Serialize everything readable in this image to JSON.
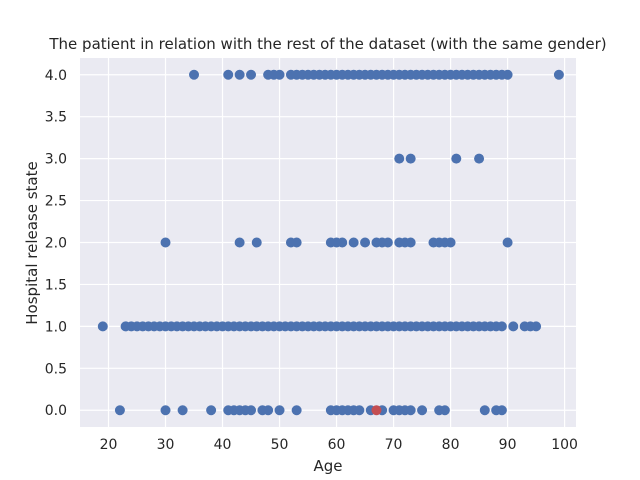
{
  "chart_data": {
    "type": "scatter",
    "title": "The patient in relation with the rest of the dataset (with the same gender)",
    "xlabel": "Age",
    "ylabel": "Hospital release state",
    "xlim": [
      15,
      102
    ],
    "ylim": [
      -0.2,
      4.2
    ],
    "x_ticks": [
      "20",
      "30",
      "40",
      "50",
      "60",
      "70",
      "80",
      "90",
      "100"
    ],
    "y_ticks": [
      "0.0",
      "0.5",
      "1.0",
      "1.5",
      "2.0",
      "2.5",
      "3.0",
      "3.5",
      "4.0"
    ],
    "grid": true,
    "series": [
      {
        "color": "#4c72b0",
        "x": [
          35,
          41,
          43,
          45,
          48,
          49,
          50,
          52,
          53,
          54,
          55,
          56,
          57,
          58,
          59,
          60,
          61,
          62,
          63,
          64,
          65,
          66,
          67,
          68,
          69,
          70,
          71,
          72,
          73,
          74,
          75,
          76,
          77,
          78,
          79,
          80,
          81,
          82,
          83,
          84,
          85,
          86,
          87,
          88,
          89,
          90,
          99,
          71,
          73,
          81,
          85,
          30,
          43,
          46,
          52,
          53,
          59,
          60,
          61,
          63,
          65,
          67,
          68,
          69,
          71,
          72,
          73,
          77,
          78,
          79,
          80,
          90,
          19,
          23,
          24,
          25,
          26,
          27,
          28,
          29,
          30,
          31,
          32,
          33,
          34,
          35,
          36,
          37,
          38,
          39,
          40,
          41,
          42,
          43,
          44,
          45,
          46,
          47,
          48,
          49,
          50,
          51,
          52,
          53,
          54,
          55,
          56,
          57,
          58,
          59,
          60,
          61,
          62,
          63,
          64,
          65,
          66,
          67,
          68,
          69,
          70,
          71,
          72,
          73,
          74,
          75,
          76,
          77,
          78,
          79,
          80,
          81,
          82,
          83,
          84,
          85,
          86,
          87,
          88,
          89,
          91,
          93,
          94,
          95,
          22,
          30,
          33,
          38,
          41,
          42,
          43,
          44,
          45,
          47,
          48,
          50,
          53,
          59,
          60,
          61,
          62,
          63,
          64,
          66,
          68,
          70,
          71,
          72,
          73,
          75,
          78,
          79,
          86,
          88,
          89
        ],
        "y": [
          4,
          4,
          4,
          4,
          4,
          4,
          4,
          4,
          4,
          4,
          4,
          4,
          4,
          4,
          4,
          4,
          4,
          4,
          4,
          4,
          4,
          4,
          4,
          4,
          4,
          4,
          4,
          4,
          4,
          4,
          4,
          4,
          4,
          4,
          4,
          4,
          4,
          4,
          4,
          4,
          4,
          4,
          4,
          4,
          4,
          4,
          4,
          3,
          3,
          3,
          3,
          2,
          2,
          2,
          2,
          2,
          2,
          2,
          2,
          2,
          2,
          2,
          2,
          2,
          2,
          2,
          2,
          2,
          2,
          2,
          2,
          2,
          1,
          1,
          1,
          1,
          1,
          1,
          1,
          1,
          1,
          1,
          1,
          1,
          1,
          1,
          1,
          1,
          1,
          1,
          1,
          1,
          1,
          1,
          1,
          1,
          1,
          1,
          1,
          1,
          1,
          1,
          1,
          1,
          1,
          1,
          1,
          1,
          1,
          1,
          1,
          1,
          1,
          1,
          1,
          1,
          1,
          1,
          1,
          1,
          1,
          1,
          1,
          1,
          1,
          1,
          1,
          1,
          1,
          1,
          1,
          1,
          1,
          1,
          1,
          1,
          1,
          1,
          1,
          1,
          1,
          1,
          1,
          1,
          0,
          0,
          0,
          0,
          0,
          0,
          0,
          0,
          0,
          0,
          0,
          0,
          0,
          0,
          0,
          0,
          0,
          0,
          0,
          0,
          0,
          0,
          0,
          0,
          0,
          0,
          0,
          0,
          0,
          0,
          0
        ]
      },
      {
        "color": "#c44e52",
        "x": [
          67
        ],
        "y": [
          0
        ]
      }
    ]
  }
}
